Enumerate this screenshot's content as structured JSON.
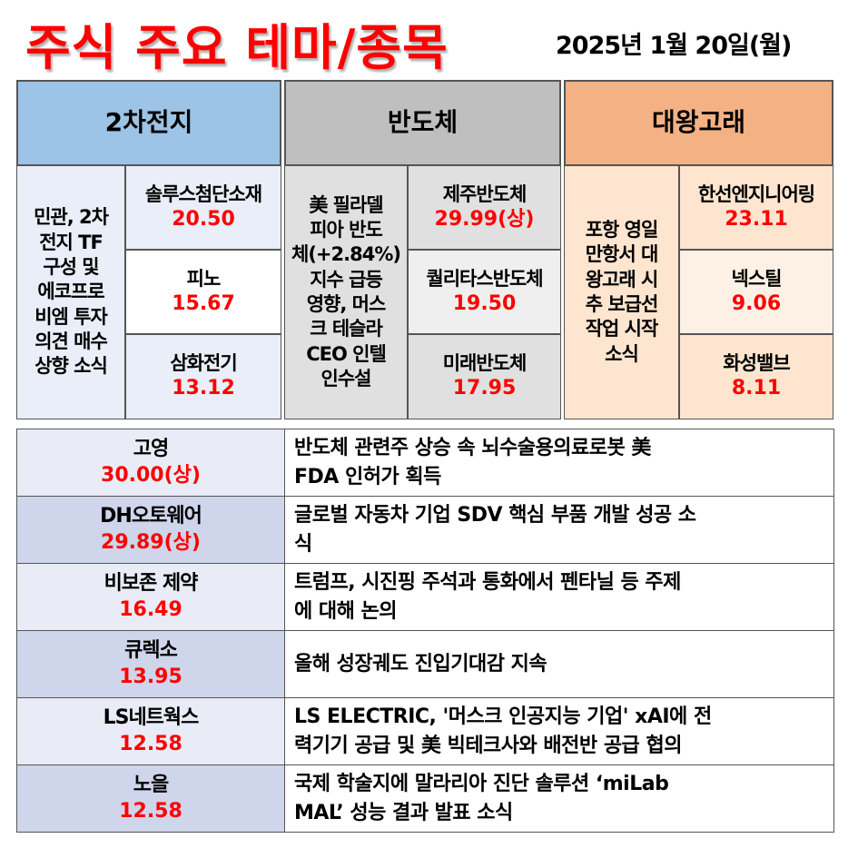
{
  "header": {
    "title": "주식 주요 테마/종목",
    "date": "2025년 1월 20일(월)"
  },
  "colors": {
    "accent_red": "#ff0000",
    "battery_header": "#9dc3e6",
    "semi_header": "#bfbfbf",
    "whale_header": "#f4b183"
  },
  "themes": [
    {
      "name": "2차전지",
      "reason_lines": [
        "민관, 2차",
        "전지 TF",
        "구성 및",
        "에코프로",
        "비엠 투자",
        "의견 매수",
        "상향 소식"
      ],
      "stocks": [
        {
          "name": "솔루스첨단소재",
          "change": "20.50"
        },
        {
          "name": "피노",
          "change": "15.67"
        },
        {
          "name": "삼화전기",
          "change": "13.12"
        }
      ]
    },
    {
      "name": "반도체",
      "reason_lines": [
        "美 필라델",
        "피아 반도",
        "체(+2.84%)",
        "지수 급등",
        "영향, 머스",
        "크 테슬라",
        "CEO 인텔",
        "인수설"
      ],
      "stocks": [
        {
          "name": "제주반도체",
          "change": "29.99(상)"
        },
        {
          "name": "퀄리타스반도체",
          "change": "19.50"
        },
        {
          "name": "미래반도체",
          "change": "17.95"
        }
      ]
    },
    {
      "name": "대왕고래",
      "reason_lines": [
        "포항 영일",
        "만항서 대",
        "왕고래 시",
        "추 보급선",
        "작업 시작",
        "소식"
      ],
      "stocks": [
        {
          "name": "한선엔지니어링",
          "change": "23.11"
        },
        {
          "name": "넥스틸",
          "change": "9.06"
        },
        {
          "name": "화성밸브",
          "change": "8.11"
        }
      ]
    }
  ],
  "individual": [
    {
      "name": "고영",
      "change": "30.00(상)",
      "news_lines": [
        "반도체 관련주 상승 속 뇌수술용의료로봇 美",
        "FDA 인허가 획득"
      ]
    },
    {
      "name": "DH오토웨어",
      "change": "29.89(상)",
      "news_lines": [
        "글로벌 자동차 기업 SDV 핵심 부품 개발 성공 소",
        "식"
      ]
    },
    {
      "name": "비보존 제약",
      "change": "16.49",
      "news_lines": [
        "트럼프, 시진핑 주석과 통화에서 펜타닐 등 주제",
        "에 대해 논의"
      ]
    },
    {
      "name": "큐렉소",
      "change": "13.95",
      "news_lines": [
        "올해 성장궤도 진입기대감 지속"
      ]
    },
    {
      "name": "LS네트웍스",
      "change": "12.58",
      "news_lines": [
        "LS ELECTRIC, '머스크 인공지능 기업' xAI에 전",
        "력기기 공급 및 美 빅테크사와 배전반 공급 협의"
      ]
    },
    {
      "name": "노을",
      "change": "12.58",
      "news_lines": [
        "국제 학술지에 말라리아 진단 솔루션 ‘miLab",
        "MAL’ 성능 결과 발표 소식"
      ]
    }
  ]
}
